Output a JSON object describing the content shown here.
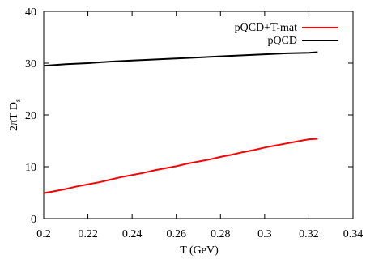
{
  "chart_data": {
    "type": "line",
    "xlabel": "T (GeV)",
    "ylabel_main": "2πT D",
    "ylabel_sub": "s",
    "xlim": [
      0.2,
      0.34
    ],
    "ylim": [
      0,
      40
    ],
    "xticks": [
      0.2,
      0.22,
      0.24,
      0.26,
      0.28,
      0.3,
      0.32,
      0.34
    ],
    "xtick_labels": [
      "0.2",
      "0.22",
      "0.24",
      "0.26",
      "0.28",
      "0.3",
      "0.32",
      "0.34"
    ],
    "yticks": [
      0,
      10,
      20,
      30,
      40
    ],
    "ytick_labels": [
      "0",
      "10",
      "20",
      "30",
      "40"
    ],
    "grid": false,
    "legend_position": "top-right",
    "series": [
      {
        "name": "pQCD+T-mat",
        "color": "#ff0000",
        "x": [
          0.2,
          0.205,
          0.21,
          0.215,
          0.22,
          0.225,
          0.23,
          0.235,
          0.24,
          0.245,
          0.25,
          0.255,
          0.26,
          0.265,
          0.27,
          0.275,
          0.28,
          0.285,
          0.29,
          0.295,
          0.3,
          0.305,
          0.31,
          0.315,
          0.32,
          0.324
        ],
        "y": [
          4.9,
          5.3,
          5.7,
          6.2,
          6.6,
          7.0,
          7.5,
          8.0,
          8.4,
          8.8,
          9.3,
          9.7,
          10.1,
          10.6,
          11.0,
          11.4,
          11.9,
          12.3,
          12.8,
          13.2,
          13.7,
          14.1,
          14.5,
          14.9,
          15.3,
          15.4
        ]
      },
      {
        "name": "pQCD",
        "color": "#000000",
        "x": [
          0.2,
          0.21,
          0.22,
          0.23,
          0.24,
          0.25,
          0.26,
          0.27,
          0.28,
          0.29,
          0.3,
          0.31,
          0.32,
          0.324
        ],
        "y": [
          29.5,
          29.8,
          30.0,
          30.3,
          30.5,
          30.7,
          30.9,
          31.1,
          31.3,
          31.5,
          31.7,
          31.9,
          32.0,
          32.1
        ]
      }
    ]
  }
}
